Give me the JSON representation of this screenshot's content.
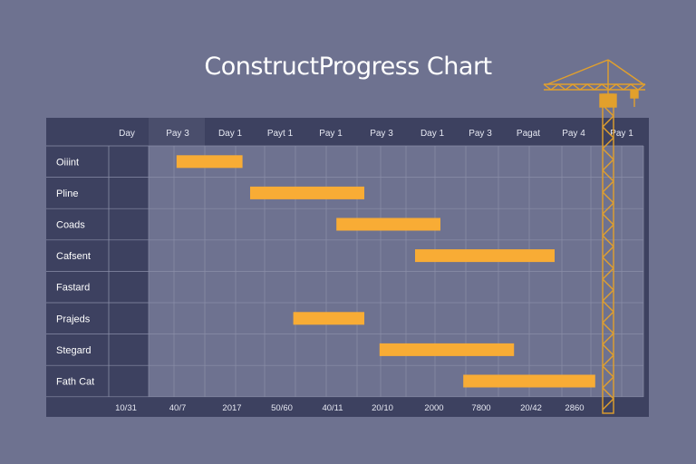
{
  "title": "ConstructProgress Chart",
  "chart_data": {
    "type": "gantt",
    "title": "ConstructProgress Chart",
    "header": [
      "Day",
      "Pay 3",
      "Day 1",
      "Payt 1",
      "Pay 1",
      "Pay 3",
      "Day 1",
      "Pay 3",
      "Pagat",
      "Pay 4",
      "Pay 1"
    ],
    "tasks": [
      {
        "name": "Oiiint",
        "start": 1.05,
        "end": 2.35
      },
      {
        "name": "Pline",
        "start": 2.5,
        "end": 4.75
      },
      {
        "name": "Coads",
        "start": 4.2,
        "end": 6.25
      },
      {
        "name": "Cafsent",
        "start": 5.75,
        "end": 8.5
      },
      {
        "name": "Fastard",
        "start": null,
        "end": null
      },
      {
        "name": "Prajeds",
        "start": 3.35,
        "end": 4.75
      },
      {
        "name": "Stegard",
        "start": 5.05,
        "end": 7.7
      },
      {
        "name": "Fath Cat",
        "start": 6.7,
        "end": 9.3
      }
    ],
    "footer": [
      "10/31",
      "40/7",
      "2017",
      "50/60",
      "40/11",
      "20/10",
      "2000",
      "7800",
      "20/42",
      "2860"
    ],
    "bar_color": "#f8ac35",
    "grid": true
  }
}
